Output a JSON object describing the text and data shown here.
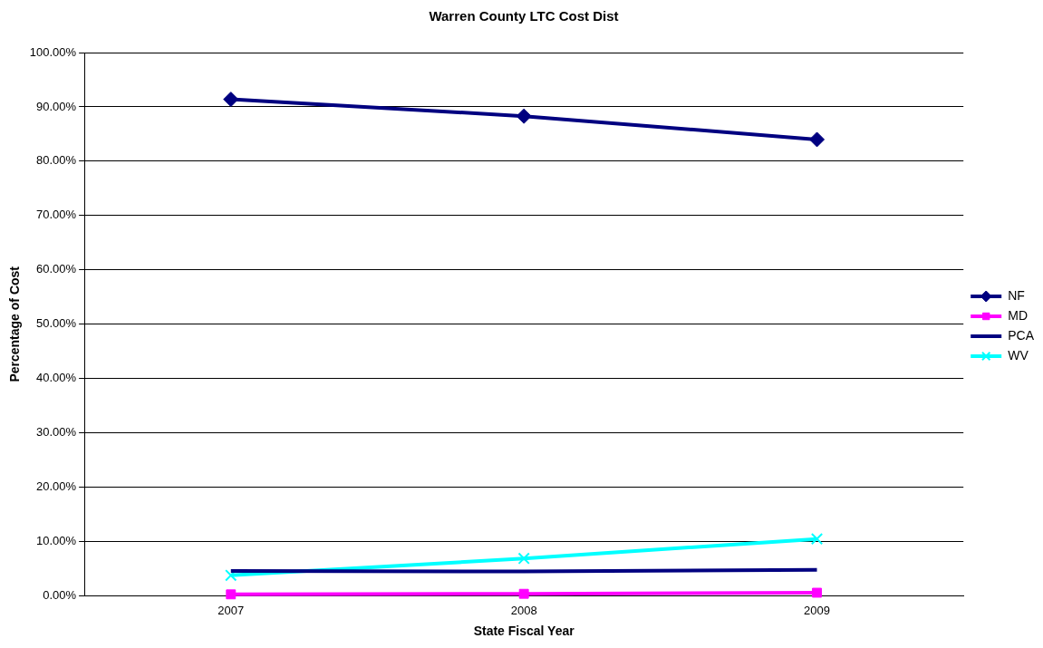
{
  "chart_data": {
    "type": "line",
    "title": "Warren County LTC Cost Dist",
    "xlabel": "State Fiscal Year",
    "ylabel": "Percentage of Cost",
    "categories": [
      "2007",
      "2008",
      "2009"
    ],
    "series": [
      {
        "name": "NF",
        "color": "#000080",
        "marker": "diamond",
        "values": [
          91.4,
          88.3,
          84.0
        ]
      },
      {
        "name": "MD",
        "color": "#ff00ff",
        "marker": "square",
        "values": [
          0.3,
          0.4,
          0.6
        ]
      },
      {
        "name": "PCA",
        "color": "#000080",
        "marker": "none",
        "values": [
          4.6,
          4.5,
          4.8
        ]
      },
      {
        "name": "WV",
        "color": "#00ffff",
        "marker": "cross",
        "values": [
          3.8,
          6.9,
          10.5
        ]
      }
    ],
    "ylim": [
      0,
      100
    ],
    "yticks": [
      {
        "value": 0,
        "label": "0.00%"
      },
      {
        "value": 10,
        "label": "10.00%"
      },
      {
        "value": 20,
        "label": "20.00%"
      },
      {
        "value": 30,
        "label": "30.00%"
      },
      {
        "value": 40,
        "label": "40.00%"
      },
      {
        "value": 50,
        "label": "50.00%"
      },
      {
        "value": 60,
        "label": "60.00%"
      },
      {
        "value": 70,
        "label": "70.00%"
      },
      {
        "value": 80,
        "label": "80.00%"
      },
      {
        "value": 90,
        "label": "90.00%"
      },
      {
        "value": 100,
        "label": "100.00%"
      }
    ],
    "grid": "y",
    "legend": "right",
    "line_style": "solid"
  }
}
